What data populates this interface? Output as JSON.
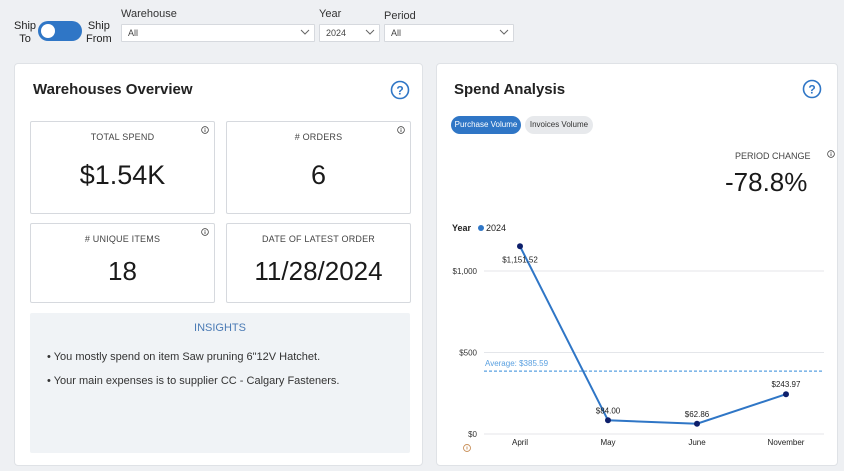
{
  "filters": {
    "ship_to": "Ship\nTo",
    "ship_from": "Ship\nFrom",
    "warehouse_label": "Warehouse",
    "warehouse_value": "All",
    "year_label": "Year",
    "year_value": "2024",
    "period_label": "Period",
    "period_value": "All"
  },
  "overview": {
    "title": "Warehouses Overview",
    "total_spend_label": "TOTAL SPEND",
    "total_spend_value": "$1.54K",
    "orders_label": "# ORDERS",
    "orders_value": "6",
    "unique_items_label": "# UNIQUE ITEMS",
    "unique_items_value": "18",
    "latest_order_label": "DATE OF LATEST ORDER",
    "latest_order_value": "11/28/2024",
    "insights_title": "INSIGHTS",
    "insights": [
      "• You mostly spend on item Saw pruning 6\"12V Hatchet.",
      "• Your main expenses is to supplier CC - Calgary Fasteners."
    ]
  },
  "spend": {
    "title": "Spend Analysis",
    "pill_purchase": "Purchase Volume",
    "pill_invoices": "Invoices Volume",
    "period_change_label": "PERIOD CHANGE",
    "period_change_value": "-78.8%"
  },
  "colors": {
    "accent": "#2f76c6",
    "line": "#2f76c6",
    "point": "#0d1f6b",
    "average": "#5aa0e0"
  },
  "chart_data": {
    "type": "line",
    "legend_title": "Year",
    "categories": [
      "April",
      "May",
      "June",
      "November"
    ],
    "series": [
      {
        "name": "2024",
        "values": [
          1151.52,
          84.0,
          62.86,
          243.97
        ]
      }
    ],
    "data_labels": [
      "$1,151.52",
      "$84.00",
      "$62.86",
      "$243.97"
    ],
    "average": 385.59,
    "average_label": "Average: $385.59",
    "y_ticks": [
      0,
      500,
      1000
    ],
    "y_tick_labels": [
      "$0",
      "$500",
      "$1,000"
    ],
    "ylim": [
      0,
      1250
    ],
    "grid": true,
    "legend_position": "top-left"
  }
}
